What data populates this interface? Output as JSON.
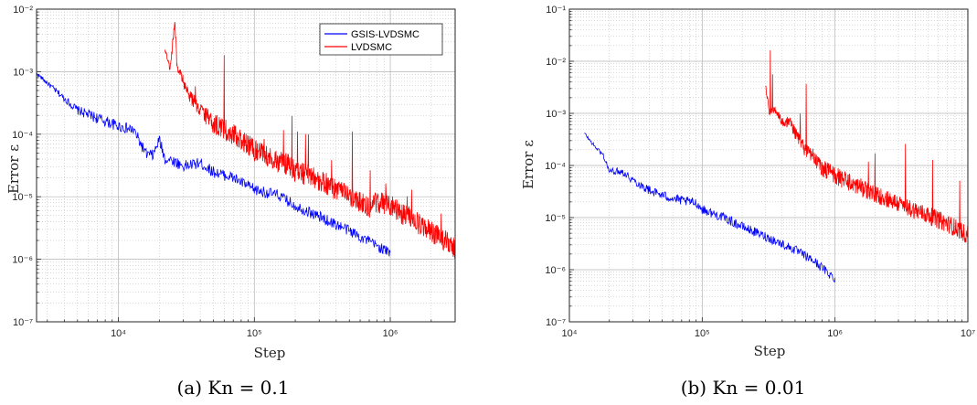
{
  "colors": {
    "gsis": "#0000ff",
    "lvdsmc": "#ff0000",
    "grid": "#b4b4b4",
    "axis": "#262626"
  },
  "chart_data": [
    {
      "type": "line",
      "caption": "(a) Kn = 0.1",
      "xlabel": "Step",
      "ylabel": "Error ε",
      "xscale": "log",
      "yscale": "log",
      "xlim": [
        2500,
        3000000
      ],
      "ylim": [
        1e-07,
        0.01
      ],
      "xtick_values": [
        10000,
        100000,
        1000000
      ],
      "xtick_labels": [
        "10⁴",
        "10⁵",
        "10⁶"
      ],
      "ytick_values": [
        1e-07,
        1e-06,
        1e-05,
        0.0001,
        0.001,
        0.01
      ],
      "ytick_labels": [
        "10⁻⁷",
        "10⁻⁶",
        "10⁻⁵",
        "10⁻⁴",
        "10⁻³",
        "10⁻²"
      ],
      "grid": true,
      "legend": {
        "position": "top-right",
        "entries": [
          "GSIS-LVDSMC",
          "LVDSMC"
        ]
      },
      "series": [
        {
          "name": "GSIS-LVDSMC",
          "x": [
            2500,
            5000,
            10000,
            13000,
            16000,
            18000,
            20000,
            22000,
            25000,
            30000,
            40000,
            50000,
            70000,
            100000,
            150000,
            200000,
            300000,
            500000,
            700000,
            1000000
          ],
          "y": [
            0.00095,
            0.00025,
            0.00014,
            0.00012,
            5e-05,
            4.8e-05,
            8.5e-05,
            4.2e-05,
            4e-05,
            3.2e-05,
            3.6e-05,
            2.6e-05,
            2.1e-05,
            1.35e-05,
            1.1e-05,
            7.5e-06,
            5e-06,
            3e-06,
            2e-06,
            1.3e-06
          ]
        },
        {
          "name": "LVDSMC",
          "x": [
            22000,
            24000,
            26000,
            27000,
            29000,
            32000,
            36000,
            40000,
            45000,
            50000,
            60000,
            70000,
            85000,
            100000,
            120000,
            150000,
            180000,
            200000,
            250000,
            300000,
            350000,
            400000,
            500000,
            600000,
            700000,
            800000,
            1000000,
            1200000,
            1500000,
            2000000,
            2500000,
            3000000
          ],
          "y": [
            0.0024,
            0.0011,
            0.0068,
            0.0012,
            0.0009,
            0.0005,
            0.00035,
            0.00025,
            0.0002,
            0.00016,
            0.00013,
            0.00011,
            8e-05,
            6e-05,
            5e-05,
            4e-05,
            3.5e-05,
            2.8e-05,
            2.4e-05,
            2e-05,
            1.7e-05,
            1.4e-05,
            1.1e-05,
            9e-06,
            7.5e-06,
            9e-06,
            8e-06,
            6e-06,
            4.5e-06,
            3e-06,
            2.2e-06,
            1.6e-06
          ]
        }
      ]
    },
    {
      "type": "line",
      "caption": "(b) Kn = 0.01",
      "xlabel": "Step",
      "ylabel": "Error ε",
      "xscale": "log",
      "yscale": "log",
      "xlim": [
        10000,
        10000000
      ],
      "ylim": [
        1e-07,
        0.1
      ],
      "xtick_values": [
        10000,
        100000,
        1000000,
        10000000
      ],
      "xtick_labels": [
        "10⁴",
        "10⁵",
        "10⁶",
        "10⁷"
      ],
      "ytick_values": [
        1e-07,
        1e-06,
        1e-05,
        0.0001,
        0.001,
        0.01,
        0.1
      ],
      "ytick_labels": [
        "10⁻⁷",
        "10⁻⁶",
        "10⁻⁵",
        "10⁻⁴",
        "10⁻³",
        "10⁻²",
        "10⁻¹"
      ],
      "grid": true,
      "series": [
        {
          "name": "GSIS-LVDSMC",
          "x": [
            13000,
            15000,
            18000,
            20000,
            25000,
            30000,
            40000,
            50000,
            70000,
            90000,
            100000,
            150000,
            200000,
            300000,
            500000,
            700000,
            1000000
          ],
          "y": [
            0.00042,
            0.00026,
            0.00016,
            8e-05,
            8e-05,
            5.5e-05,
            3.5e-05,
            2.8e-05,
            2.2e-05,
            2e-05,
            1.5e-05,
            1e-05,
            7e-06,
            4.5e-06,
            2.5e-06,
            1.5e-06,
            7e-07
          ]
        },
        {
          "name": "LVDSMC",
          "x": [
            300000,
            320000,
            350000,
            380000,
            420000,
            450000,
            500000,
            550000,
            600000,
            700000,
            800000,
            1000000,
            1300000,
            1600000,
            2000000,
            2500000,
            3000000,
            4000000,
            5000000,
            6500000,
            8000000,
            10000000
          ],
          "y": [
            0.0035,
            0.0011,
            0.0012,
            0.0009,
            0.0006,
            0.0008,
            0.00045,
            0.0003,
            0.0002,
            0.00015,
            0.0001,
            7e-05,
            5e-05,
            4e-05,
            3e-05,
            2.5e-05,
            2e-05,
            1.5e-05,
            1.2e-05,
            9e-06,
            7e-06,
            5e-06
          ]
        }
      ]
    }
  ]
}
